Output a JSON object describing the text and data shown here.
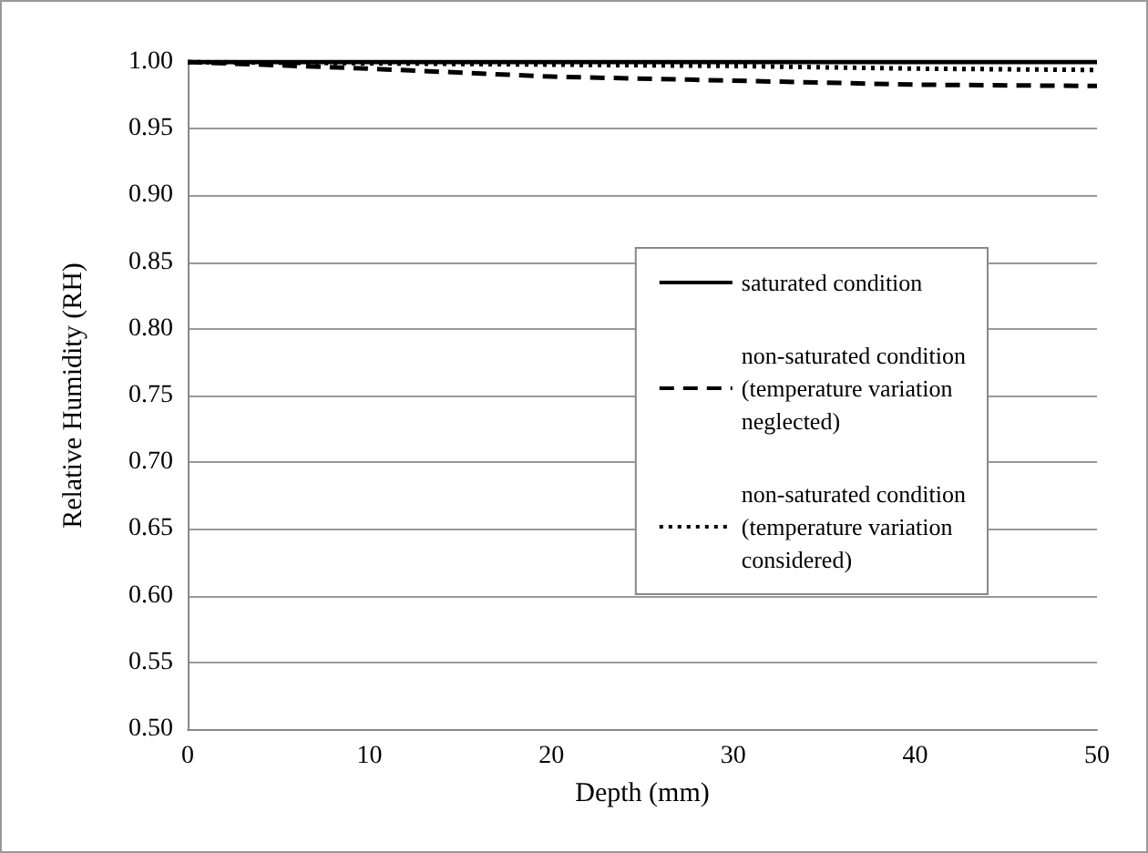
{
  "chart_data": {
    "type": "line",
    "xlabel": "Depth (mm)",
    "ylabel": "Relative Humidity (RH)",
    "x": [
      0,
      10,
      20,
      30,
      40,
      50
    ],
    "series": [
      {
        "name": "saturated condition",
        "color": "#000000",
        "line_style": "solid",
        "values": [
          1.0,
          1.0,
          1.0,
          1.0,
          1.0,
          1.0
        ]
      },
      {
        "name": "non-saturated condition (temperature variation neglected)",
        "color": "#000000",
        "line_style": "dashed",
        "values": [
          1.0,
          0.995,
          0.989,
          0.986,
          0.983,
          0.982
        ]
      },
      {
        "name": "non-saturated condition (temperature variation considered)",
        "color": "#000000",
        "line_style": "dotted",
        "values": [
          1.0,
          0.999,
          0.998,
          0.997,
          0.995,
          0.994
        ]
      }
    ],
    "xlim": [
      0,
      50
    ],
    "xticks": [
      0,
      10,
      20,
      30,
      40,
      50
    ],
    "ylim": [
      0.5,
      1.0
    ],
    "yticks": [
      {
        "value": 0.5,
        "label": "0.50"
      },
      {
        "value": 0.55,
        "label": "0.55"
      },
      {
        "value": 0.6,
        "label": "0.60"
      },
      {
        "value": 0.65,
        "label": "0.65"
      },
      {
        "value": 0.7,
        "label": "0.70"
      },
      {
        "value": 0.75,
        "label": "0.75"
      },
      {
        "value": 0.8,
        "label": "0.80"
      },
      {
        "value": 0.85,
        "label": "0.85"
      },
      {
        "value": 0.9,
        "label": "0.90"
      },
      {
        "value": 0.95,
        "label": "0.95"
      },
      {
        "value": 1.0,
        "label": "1.00"
      }
    ],
    "grid": "y",
    "legend": "right",
    "marker": "none"
  }
}
